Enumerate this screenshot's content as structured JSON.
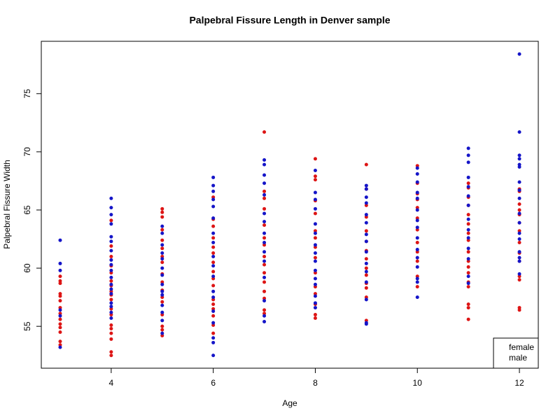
{
  "chart_data": {
    "type": "scatter",
    "title": "Palpebral Fissure Length in Denver sample",
    "x_label": "Age",
    "y_label": "Palpebral Fissure Width",
    "xlim": [
      2.63,
      12.37
    ],
    "ylim": [
      51.4,
      79.5
    ],
    "xticks": [
      4,
      6,
      8,
      10,
      12
    ],
    "yticks": [
      55,
      60,
      65,
      70,
      75
    ],
    "grid": false,
    "legend": "bottomright",
    "series": [
      {
        "name": "female",
        "color": "#dd1515",
        "x": [
          3,
          3,
          3,
          3,
          3,
          3,
          3,
          3,
          3,
          3,
          3,
          3,
          3,
          3,
          4,
          4,
          4,
          4,
          4,
          4,
          4,
          4,
          4,
          4,
          4,
          4,
          4,
          4,
          4,
          4,
          4,
          4,
          5,
          5,
          5,
          5,
          5,
          5,
          5,
          5,
          5,
          5,
          5,
          5,
          5,
          5,
          5,
          5,
          5,
          6,
          6,
          6,
          6,
          6,
          6,
          6,
          6,
          6,
          6,
          6,
          6,
          6,
          6,
          6,
          6,
          7,
          7,
          7,
          7,
          7,
          7,
          7,
          7,
          7,
          7,
          7,
          7,
          7,
          7,
          7,
          8,
          8,
          8,
          8,
          8,
          8,
          8,
          8,
          8,
          8,
          8,
          8,
          8,
          8,
          8,
          9,
          9,
          9,
          9,
          9,
          9,
          9,
          9,
          9,
          9,
          9,
          9,
          9,
          9,
          10,
          10,
          10,
          10,
          10,
          10,
          10,
          10,
          10,
          10,
          10,
          10,
          11,
          11,
          11,
          11,
          11,
          11,
          11,
          11,
          11,
          11,
          11,
          11,
          11,
          11,
          11,
          11,
          11,
          12,
          12,
          12,
          12,
          12,
          12,
          12,
          12,
          12,
          12,
          12,
          12,
          12,
          12
        ],
        "y": [
          59.3,
          58.9,
          58.7,
          57.8,
          57.6,
          57.2,
          56.6,
          56.1,
          55.6,
          55.2,
          54.9,
          54.5,
          53.7,
          53.4,
          64.1,
          61.9,
          61.0,
          60.2,
          59.6,
          58.9,
          58.0,
          57.3,
          56.5,
          56.0,
          55.1,
          54.8,
          54.4,
          53.9,
          52.8,
          52.5,
          58.5,
          57.7,
          65.1,
          64.8,
          64.4,
          63.3,
          62.4,
          61.7,
          61.0,
          60.5,
          59.5,
          58.8,
          58.1,
          57.5,
          57.1,
          56.0,
          55.0,
          54.7,
          54.2,
          66.1,
          64.2,
          63.6,
          62.6,
          61.8,
          61.3,
          60.5,
          59.7,
          59.1,
          58.5,
          57.3,
          56.5,
          55.9,
          55.1,
          54.4,
          56.9,
          71.7,
          66.6,
          66.0,
          65.1,
          63.7,
          62.6,
          62.0,
          61.0,
          60.3,
          59.6,
          58.8,
          58.0,
          57.4,
          56.4,
          56.1,
          69.4,
          67.9,
          67.6,
          65.8,
          64.7,
          63.2,
          62.6,
          61.8,
          60.9,
          59.6,
          58.4,
          57.8,
          56.9,
          56.0,
          55.7,
          68.9,
          66.8,
          65.4,
          64.4,
          63.2,
          62.3,
          61.5,
          60.8,
          60.0,
          59.4,
          58.7,
          58.3,
          57.5,
          55.5,
          68.8,
          67.3,
          66.4,
          65.9,
          65.2,
          64.3,
          63.3,
          62.2,
          61.4,
          60.6,
          59.3,
          58.4,
          67.3,
          66.9,
          66.1,
          65.4,
          64.6,
          63.8,
          63.0,
          62.4,
          61.4,
          60.6,
          60.1,
          59.6,
          58.8,
          58.4,
          56.9,
          56.6,
          55.6,
          66.8,
          66.6,
          65.5,
          65.0,
          64.6,
          63.9,
          63.2,
          62.2,
          61.3,
          60.6,
          59.3,
          59.0,
          56.6,
          56.4
        ]
      },
      {
        "name": "male",
        "color": "#1515c8",
        "x": [
          3,
          3,
          3,
          3,
          3,
          3,
          4,
          4,
          4,
          4,
          4,
          4,
          4,
          4,
          4,
          4,
          4,
          4,
          4,
          4,
          4,
          4,
          4,
          4,
          5,
          5,
          5,
          5,
          5,
          5,
          5,
          5,
          5,
          5,
          5,
          5,
          5,
          5,
          6,
          6,
          6,
          6,
          6,
          6,
          6,
          6,
          6,
          6,
          6,
          6,
          6,
          6,
          6,
          6,
          6,
          6,
          7,
          7,
          7,
          7,
          7,
          7,
          7,
          7,
          7,
          7,
          7,
          7,
          7,
          7,
          7,
          8,
          8,
          8,
          8,
          8,
          8,
          8,
          8,
          8,
          8,
          8,
          8,
          8,
          8,
          8,
          9,
          9,
          9,
          9,
          9,
          9,
          9,
          9,
          9,
          9,
          9,
          9,
          9,
          9,
          9,
          10,
          10,
          10,
          10,
          10,
          10,
          10,
          10,
          10,
          10,
          10,
          10,
          10,
          10,
          10,
          11,
          11,
          11,
          11,
          11,
          11,
          11,
          11,
          11,
          11,
          11,
          11,
          11,
          11,
          12,
          12,
          12,
          12,
          12,
          12,
          12,
          12,
          12,
          12,
          12,
          12,
          12,
          12,
          12,
          12,
          12
        ],
        "y": [
          62.4,
          60.4,
          59.8,
          56.4,
          55.9,
          53.2,
          66.0,
          65.2,
          64.6,
          63.8,
          62.7,
          62.3,
          61.5,
          60.7,
          60.3,
          59.8,
          59.2,
          58.6,
          58.2,
          57.8,
          57.0,
          56.7,
          56.2,
          55.7,
          63.6,
          63.0,
          62.0,
          61.3,
          60.8,
          60.0,
          59.4,
          58.6,
          58.0,
          57.7,
          56.8,
          56.2,
          55.5,
          54.4,
          67.8,
          67.1,
          66.6,
          65.9,
          65.3,
          64.3,
          63.0,
          62.2,
          61.0,
          60.2,
          59.3,
          58.0,
          57.5,
          56.3,
          55.3,
          54.0,
          53.6,
          52.5,
          69.3,
          68.9,
          68.0,
          67.3,
          66.3,
          64.7,
          64.0,
          63.0,
          62.2,
          61.4,
          60.6,
          59.2,
          57.2,
          55.9,
          55.4,
          68.4,
          66.5,
          65.9,
          65.1,
          63.8,
          63.0,
          62.0,
          61.3,
          60.6,
          59.8,
          59.1,
          58.6,
          57.6,
          57.0,
          56.6,
          67.1,
          66.8,
          66.1,
          65.6,
          64.6,
          63.9,
          62.9,
          62.3,
          61.4,
          60.4,
          59.7,
          58.8,
          57.3,
          55.3,
          55.2,
          68.6,
          68.1,
          67.4,
          66.5,
          66.0,
          65.0,
          64.1,
          63.5,
          62.6,
          61.6,
          60.9,
          60.1,
          59.1,
          58.8,
          57.5,
          70.3,
          69.7,
          69.1,
          67.8,
          67.0,
          66.2,
          65.4,
          64.2,
          63.3,
          62.6,
          61.7,
          60.8,
          59.3,
          58.7,
          78.4,
          71.7,
          69.7,
          69.4,
          68.9,
          68.7,
          67.4,
          66.7,
          66.0,
          64.7,
          63.9,
          63.0,
          62.5,
          61.4,
          60.9,
          60.6,
          59.5
        ]
      }
    ]
  }
}
